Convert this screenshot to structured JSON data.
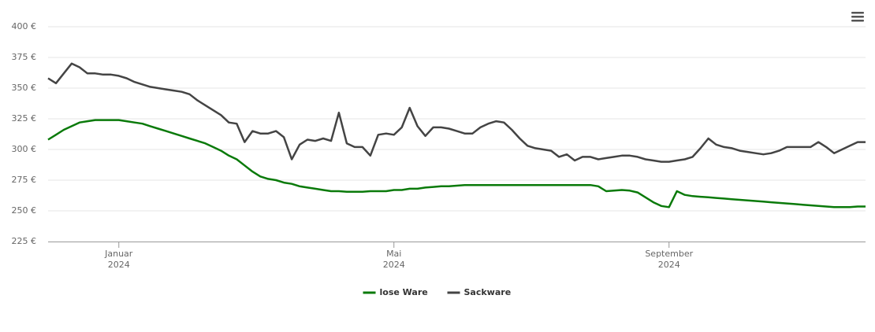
{
  "chart_data": {
    "type": "line",
    "categories": [
      null,
      null,
      null,
      null,
      null,
      null,
      null,
      null,
      null,
      "Januar 2024",
      null,
      null,
      null,
      null,
      null,
      null,
      null,
      null,
      null,
      null,
      null,
      null,
      null,
      null,
      null,
      null,
      null,
      null,
      null,
      null,
      null,
      null,
      null,
      null,
      null,
      null,
      null,
      null,
      null,
      null,
      null,
      null,
      null,
      null,
      "Mai 2024",
      null,
      null,
      null,
      null,
      null,
      null,
      null,
      null,
      null,
      null,
      null,
      null,
      null,
      null,
      null,
      null,
      null,
      null,
      null,
      null,
      null,
      null,
      null,
      null,
      null,
      null,
      null,
      null,
      null,
      null,
      null,
      null,
      null,
      null,
      "September 2024",
      null,
      null,
      null,
      null,
      null,
      null,
      null,
      null,
      null,
      null,
      null,
      null,
      null,
      null,
      null,
      null,
      null,
      null,
      null,
      null,
      null,
      null,
      null,
      null,
      null
    ],
    "series": [
      {
        "name": "lose Ware",
        "color": "#0a7a0a",
        "values": [
          308,
          312,
          316,
          319,
          322,
          323,
          324,
          324,
          324,
          324,
          323,
          322,
          321,
          319,
          317,
          315,
          313,
          311,
          309,
          307,
          305,
          302,
          299,
          295,
          292,
          287,
          282,
          278,
          276,
          275,
          273,
          272,
          270,
          269,
          268,
          267,
          266,
          266,
          265.5,
          265.5,
          265.5,
          266,
          266,
          266,
          267,
          267,
          268,
          268,
          269,
          269.5,
          270,
          270,
          270.5,
          271,
          271,
          271,
          271,
          271,
          271,
          271,
          271,
          271,
          271,
          271,
          271,
          271,
          271,
          271,
          271,
          271,
          270,
          266,
          266.5,
          267,
          266.5,
          265,
          261,
          257,
          254,
          253,
          266,
          263,
          262,
          261.5,
          261,
          260.5,
          260,
          259.5,
          259,
          258.5,
          258,
          257.5,
          257,
          256.5,
          256,
          255.5,
          255,
          254.5,
          254,
          253.5,
          253,
          253,
          253,
          253.5,
          253.5
        ]
      },
      {
        "name": "Sackware",
        "color": "#444444",
        "values": [
          358,
          354,
          362,
          370,
          367,
          362,
          362,
          361,
          361,
          360,
          358,
          355,
          353,
          351,
          350,
          349,
          348,
          347,
          345,
          340,
          336,
          332,
          328,
          322,
          321,
          306,
          315,
          313,
          313,
          315,
          310,
          292,
          304,
          308,
          307,
          309,
          307,
          330,
          305,
          302,
          302,
          295,
          312,
          313,
          312,
          318,
          334,
          319,
          311,
          318,
          318,
          317,
          315,
          313,
          313,
          318,
          321,
          323,
          322,
          316,
          309,
          303,
          301,
          300,
          299,
          294,
          296,
          291,
          294,
          294,
          292,
          293,
          294,
          295,
          295,
          294,
          292,
          291,
          290,
          290,
          291,
          292,
          294,
          301,
          309,
          304,
          302,
          301,
          299,
          298,
          297,
          296,
          297,
          299,
          302,
          302,
          302,
          302,
          306,
          302,
          297,
          300,
          303,
          306,
          306
        ]
      }
    ],
    "ylim": [
      225,
      400
    ],
    "yticks": [
      {
        "value": 225,
        "label": "225 €"
      },
      {
        "value": 250,
        "label": "250 €"
      },
      {
        "value": 275,
        "label": "275 €"
      },
      {
        "value": 300,
        "label": "300 €"
      },
      {
        "value": 325,
        "label": "325 €"
      },
      {
        "value": 350,
        "label": "350 €"
      },
      {
        "value": 375,
        "label": "375 €"
      },
      {
        "value": 400,
        "label": "400 €"
      }
    ],
    "grid": true
  }
}
